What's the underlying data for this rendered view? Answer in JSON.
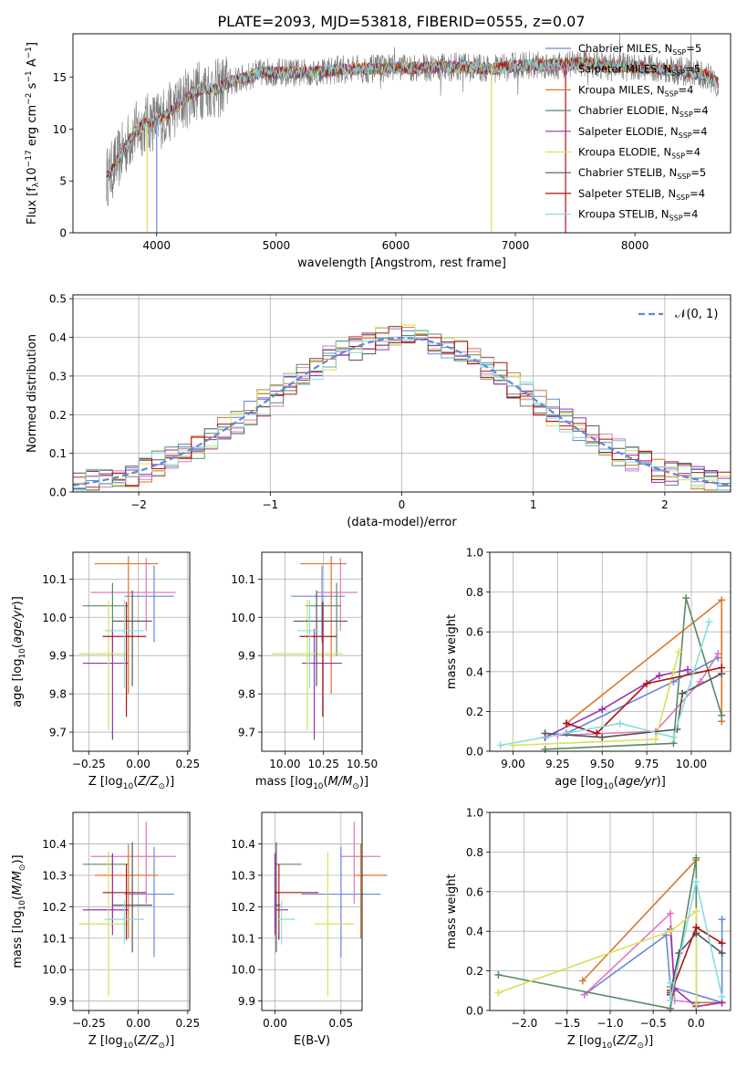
{
  "figure_title": "PLATE=2093, MJD=53818, FIBERID=0555, z=0.07",
  "colors": [
    "#6688dd",
    "#e377c2",
    "#d9772b",
    "#5a8a64",
    "#9a2fb5",
    "#d9e05a",
    "#555555",
    "#b01010",
    "#88dde0"
  ],
  "chart_data": [
    {
      "type": "line",
      "panel": "spectrum",
      "xlabel": "wavelength [Angstrom, rest frame]",
      "ylabel": "Flux [f_λ 10^-17 erg cm^-2 s^-1 A^-1]",
      "xlim": [
        3300,
        8800
      ],
      "ylim": [
        0,
        19.2
      ],
      "xticks": [
        4000,
        5000,
        6000,
        7000,
        8000
      ],
      "yticks": [
        0,
        5,
        10,
        15
      ],
      "grid": false,
      "legend_position": "upper right",
      "x": [
        3600,
        3700,
        3800,
        3900,
        4000,
        4100,
        4200,
        4300,
        4400,
        4500,
        4600,
        4700,
        4800,
        4900,
        5000,
        5200,
        5400,
        5600,
        5800,
        6000,
        6200,
        6400,
        6600,
        6800,
        7000,
        7200,
        7400,
        7600,
        7800,
        8000,
        8200,
        8400,
        8600,
        8700
      ],
      "y": [
        5.5,
        7.5,
        9.5,
        10.5,
        10.8,
        11.5,
        12.5,
        13.5,
        14,
        13.8,
        14.5,
        14.8,
        15.2,
        15.5,
        15.5,
        15.4,
        15.6,
        15.8,
        15.8,
        15.9,
        15.9,
        16.0,
        16.0,
        15.8,
        16.1,
        16.2,
        16.2,
        16.4,
        16.0,
        16.0,
        15.8,
        15.6,
        15.2,
        14.4
      ],
      "series": [
        {
          "name": "Chabrier MILES, N_SSP=5"
        },
        {
          "name": "Salpeter MILES, N_SSP=5"
        },
        {
          "name": "Kroupa MILES, N_SSP=4"
        },
        {
          "name": "Chabrier ELODIE, N_SSP=4"
        },
        {
          "name": "Salpeter ELODIE, N_SSP=4"
        },
        {
          "name": "Kroupa ELODIE, N_SSP=4"
        },
        {
          "name": "Chabrier STELIB, N_SSP=5"
        },
        {
          "name": "Salpeter STELIB, N_SSP=4"
        },
        {
          "name": "Kroupa STELIB, N_SSP=4"
        }
      ],
      "legend_labels": [
        {
          "model": "Chabrier MILES, N",
          "sub": "SSP",
          "tail": "=5"
        },
        {
          "model": "Salpeter MILES, N",
          "sub": "SSP",
          "tail": "=5"
        },
        {
          "model": "Kroupa MILES, N",
          "sub": "SSP",
          "tail": "=4"
        },
        {
          "model": "Chabrier ELODIE, N",
          "sub": "SSP",
          "tail": "=4"
        },
        {
          "model": "Salpeter ELODIE, N",
          "sub": "SSP",
          "tail": "=4"
        },
        {
          "model": "Kroupa ELODIE, N",
          "sub": "SSP",
          "tail": "=4"
        },
        {
          "model": "Chabrier STELIB, N",
          "sub": "SSP",
          "tail": "=5"
        },
        {
          "model": "Salpeter STELIB, N",
          "sub": "SSP",
          "tail": "=4"
        },
        {
          "model": "Kroupa STELIB, N",
          "sub": "SSP",
          "tail": "=4"
        }
      ]
    },
    {
      "type": "area",
      "panel": "residuals",
      "xlabel": "(data-model)/error",
      "ylabel": "Normed distribution",
      "xlim": [
        -2.5,
        2.5
      ],
      "ylim": [
        0,
        0.51
      ],
      "xticks": [
        -2,
        -1,
        0,
        1,
        2
      ],
      "yticks": [
        0.0,
        0.1,
        0.2,
        0.3,
        0.4,
        0.5
      ],
      "grid": true,
      "legend": "𝒩(0, 1)",
      "bin_width": 0.1,
      "bin_start": -2.5,
      "normal_curve": {
        "mean": 0,
        "sigma": 1
      }
    },
    {
      "type": "scatter",
      "panel": "age-vs-metallicity",
      "xlabel": "Z [log10(Z/Z⊙)]",
      "ylabel": "age [log10(age/yr)]",
      "xlim": [
        -0.33,
        0.26
      ],
      "ylim": [
        9.65,
        10.17
      ],
      "xticks": [
        -0.25,
        0.0,
        0.25
      ],
      "yticks": [
        9.7,
        9.8,
        9.9,
        10.0,
        10.1
      ],
      "grid": true
    },
    {
      "type": "scatter",
      "panel": "age-vs-mass",
      "xlabel": "mass [log10(M/M⊙)]",
      "xlim": [
        9.85,
        10.5
      ],
      "ylim": [
        9.65,
        10.17
      ],
      "xticks": [
        10.0,
        10.25,
        10.5
      ],
      "yticks": [
        9.7,
        9.8,
        9.9,
        10.0,
        10.1
      ],
      "grid": true
    },
    {
      "type": "line",
      "panel": "mass-weight-vs-age",
      "xlabel": "age [log10(age/yr)]",
      "ylabel": "mass weight",
      "xlim": [
        8.87,
        10.22
      ],
      "ylim": [
        0,
        1.0
      ],
      "xticks": [
        9.0,
        9.25,
        9.5,
        9.75,
        10.0
      ],
      "yticks": [
        0.0,
        0.2,
        0.4,
        0.6,
        0.8,
        1.0
      ],
      "grid": true,
      "series": [
        {
          "name": "Chabrier MILES",
          "x": [
            9.18,
            9.3,
            9.9,
            10.15
          ],
          "y": [
            0.07,
            0.09,
            0.35,
            0.47
          ]
        },
        {
          "name": "Salpeter MILES",
          "x": [
            9.25,
            9.8,
            10.05,
            10.15
          ],
          "y": [
            0.08,
            0.1,
            0.35,
            0.49
          ]
        },
        {
          "name": "Kroupa MILES",
          "x": [
            9.3,
            10.17,
            10.17
          ],
          "y": [
            0.14,
            0.76,
            0.15
          ]
        },
        {
          "name": "Chabrier ELODIE",
          "x": [
            9.18,
            9.9,
            9.97,
            10.17
          ],
          "y": [
            0.01,
            0.04,
            0.77,
            0.18
          ]
        },
        {
          "name": "Salpeter ELODIE",
          "x": [
            9.18,
            9.5,
            9.82,
            9.98
          ],
          "y": [
            0.07,
            0.21,
            0.38,
            0.41
          ]
        },
        {
          "name": "Kroupa ELODIE",
          "x": [
            9.0,
            9.8,
            9.9,
            9.93
          ],
          "y": [
            0.03,
            0.06,
            0.4,
            0.5
          ]
        },
        {
          "name": "Chabrier STELIB",
          "x": [
            9.18,
            9.5,
            9.92,
            9.95,
            10.17
          ],
          "y": [
            0.09,
            0.07,
            0.11,
            0.29,
            0.39
          ]
        },
        {
          "name": "Salpeter STELIB",
          "x": [
            9.3,
            9.47,
            9.75,
            10.17
          ],
          "y": [
            0.14,
            0.09,
            0.34,
            0.42
          ]
        },
        {
          "name": "Kroupa STELIB",
          "x": [
            8.93,
            9.6,
            9.9,
            10.1
          ],
          "y": [
            0.03,
            0.14,
            0.07,
            0.65
          ]
        }
      ]
    },
    {
      "type": "scatter",
      "panel": "mass-vs-metallicity",
      "xlabel": "Z [log10(Z/Z⊙)]",
      "ylabel": "mass [log10(M/M⊙)]",
      "xlim": [
        -0.33,
        0.26
      ],
      "ylim": [
        9.87,
        10.5
      ],
      "xticks": [
        -0.25,
        0.0,
        0.25
      ],
      "yticks": [
        9.9,
        10.0,
        10.1,
        10.2,
        10.3,
        10.4
      ],
      "grid": true
    },
    {
      "type": "scatter",
      "panel": "mass-vs-extinction",
      "xlabel": "E(B-V)",
      "xlim": [
        -0.01,
        0.066
      ],
      "ylim": [
        9.87,
        10.5
      ],
      "xticks": [
        0.0,
        0.05
      ],
      "yticks": [
        9.9,
        10.0,
        10.1,
        10.2,
        10.3,
        10.4
      ],
      "grid": true
    },
    {
      "type": "line",
      "panel": "mass-weight-vs-metallicity",
      "xlabel": "Z [log10(Z/Z⊙)]",
      "ylabel": "mass weight",
      "xlim": [
        -2.4,
        0.4
      ],
      "ylim": [
        0,
        1.0
      ],
      "xticks": [
        -2.0,
        -1.5,
        -1.0,
        -0.5,
        0.0
      ],
      "yticks": [
        0.0,
        0.2,
        0.4,
        0.6,
        0.8,
        1.0
      ],
      "grid": true,
      "series": [
        {
          "name": "Chabrier MILES",
          "x": [
            -1.3,
            -0.35,
            -0.3,
            0.3,
            0.3
          ],
          "y": [
            0.08,
            0.38,
            0.12,
            0.04,
            0.46
          ]
        },
        {
          "name": "Salpeter MILES",
          "x": [
            -1.3,
            -0.3,
            -0.25,
            0.0
          ],
          "y": [
            0.08,
            0.49,
            0.05,
            0.04
          ]
        },
        {
          "name": "Kroupa MILES",
          "x": [
            -1.32,
            0.0,
            0.0,
            0.3
          ],
          "y": [
            0.15,
            0.76,
            0.04,
            0.04
          ]
        },
        {
          "name": "Chabrier ELODIE",
          "x": [
            -2.3,
            -0.3,
            0.0,
            0.0
          ],
          "y": [
            0.18,
            0.01,
            0.77,
            0.04
          ]
        },
        {
          "name": "Salpeter ELODIE",
          "x": [
            -0.3,
            -0.25,
            0.0,
            0.3
          ],
          "y": [
            0.41,
            0.11,
            0.02,
            0.04
          ]
        },
        {
          "name": "Kroupa ELODIE",
          "x": [
            -2.3,
            -0.3,
            0.0,
            0.0
          ],
          "y": [
            0.09,
            0.4,
            0.5,
            0.03
          ]
        },
        {
          "name": "Chabrier STELIB",
          "x": [
            -0.3,
            -0.2,
            0.0,
            0.3
          ],
          "y": [
            0.09,
            0.29,
            0.39,
            0.29
          ]
        },
        {
          "name": "Salpeter STELIB",
          "x": [
            -0.3,
            -0.3,
            0.0,
            0.3
          ],
          "y": [
            0.1,
            0.08,
            0.42,
            0.34
          ]
        },
        {
          "name": "Kroupa STELIB",
          "x": [
            -0.3,
            -0.3,
            0.0,
            0.3
          ],
          "y": [
            0.14,
            0.05,
            0.65,
            0.07
          ]
        }
      ]
    }
  ],
  "errorbars": {
    "age_z_mass": [
      {
        "z": 0.08,
        "zerr": [
          0.15,
          0.1
        ],
        "age": 10.055,
        "ageerr": [
          0.12,
          0.08
        ],
        "mass": 10.24,
        "masserr": [
          0.2,
          0.15
        ],
        "ebv": 0.05,
        "ebverr": [
          0.03,
          0.03
        ]
      },
      {
        "z": 0.04,
        "zerr": [
          0.28,
          0.15
        ],
        "age": 10.065,
        "ageerr": [
          0.1,
          0.09
        ],
        "mass": 10.36,
        "masserr": [
          0.15,
          0.11
        ],
        "ebv": 0.06,
        "ebverr": [
          0.01,
          0.02
        ]
      },
      {
        "z": -0.05,
        "zerr": [
          0.17,
          0.15
        ],
        "age": 10.14,
        "ageerr": [
          0.34,
          0.02
        ],
        "mass": 10.3,
        "masserr": [
          0.2,
          0.1
        ],
        "ebv": 0.065,
        "ebverr": [
          0.005,
          0.02
        ]
      },
      {
        "z": -0.13,
        "zerr": [
          0.15,
          0.08
        ],
        "age": 10.03,
        "ageerr": [
          0.13,
          0.06
        ],
        "mass": 10.335,
        "masserr": [
          0.2,
          0.03
        ],
        "ebv": 0.0,
        "ebverr": [
          0.0,
          0.02
        ]
      },
      {
        "z": -0.13,
        "zerr": [
          0.15,
          0.08
        ],
        "age": 9.88,
        "ageerr": [
          0.2,
          0.09
        ],
        "mass": 10.19,
        "masserr": [
          0.08,
          0.18
        ],
        "ebv": 0.0,
        "ebverr": [
          0.0,
          0.01
        ]
      },
      {
        "z": -0.15,
        "zerr": [
          0.15,
          0.1
        ],
        "age": 9.905,
        "ageerr": [
          0.2,
          0.14
        ],
        "mass": 10.145,
        "masserr": [
          0.23,
          0.23
        ],
        "ebv": 0.04,
        "ebverr": [
          0.01,
          0.02
        ]
      },
      {
        "z": -0.03,
        "zerr": [
          0.1,
          0.1
        ],
        "age": 9.99,
        "ageerr": [
          0.17,
          0.08
        ],
        "mass": 10.205,
        "masserr": [
          0.15,
          0.2
        ],
        "ebv": 0.001,
        "ebverr": [
          0.001,
          0.003
        ]
      },
      {
        "z": -0.06,
        "zerr": [
          0.12,
          0.1
        ],
        "age": 9.95,
        "ageerr": [
          0.21,
          0.09
        ],
        "mass": 10.245,
        "masserr": [
          0.15,
          0.09
        ],
        "ebv": 0.003,
        "ebverr": [
          0.003,
          0.03
        ]
      },
      {
        "z": -0.07,
        "zerr": [
          0.1,
          0.1
        ],
        "age": 9.965,
        "ageerr": [
          0.15,
          0.08
        ],
        "mass": 10.16,
        "masserr": [
          0.08,
          0.06
        ],
        "ebv": 0.005,
        "ebverr": [
          0.003,
          0.01
        ]
      }
    ]
  }
}
